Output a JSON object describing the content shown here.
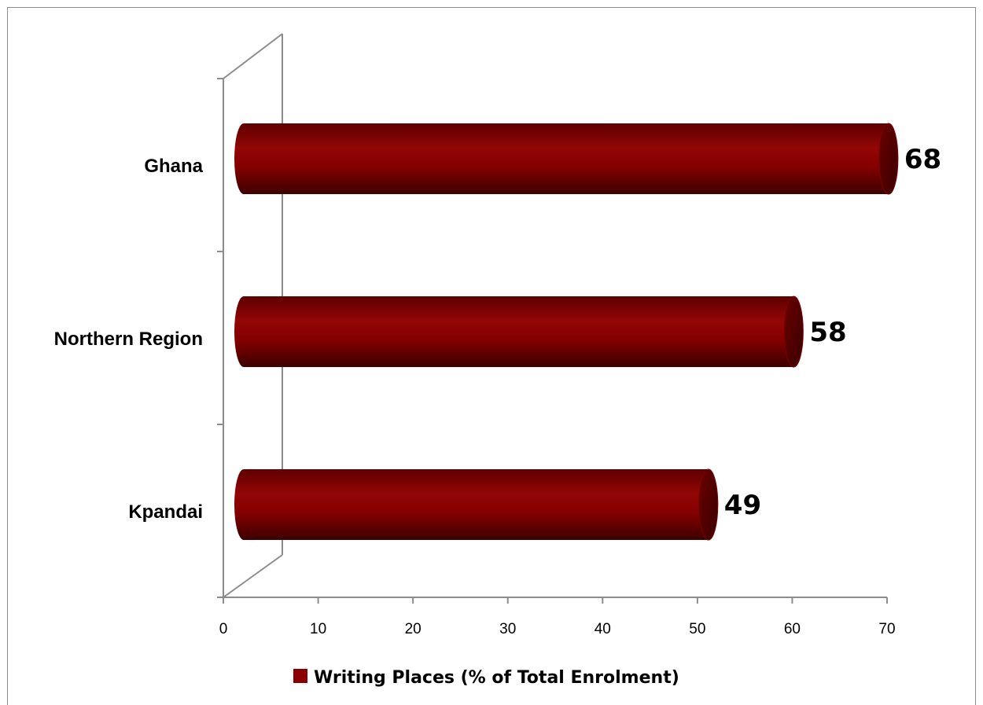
{
  "chart_data": {
    "type": "bar",
    "orientation": "horizontal",
    "style": "3d-cylinder",
    "categories": [
      "Kpandai",
      "Northern Region",
      "Ghana"
    ],
    "series": [
      {
        "name": "Writing Places (% of Total Enrolment)",
        "values": [
          49,
          58,
          68
        ],
        "data_labels": [
          "49",
          "58",
          "68"
        ],
        "color": "#8b0000"
      }
    ],
    "x_ticks": [
      "0",
      "10",
      "20",
      "30",
      "40",
      "50",
      "60",
      "70"
    ],
    "xlim": [
      0,
      70
    ],
    "grid": false,
    "legend": "bottom"
  }
}
